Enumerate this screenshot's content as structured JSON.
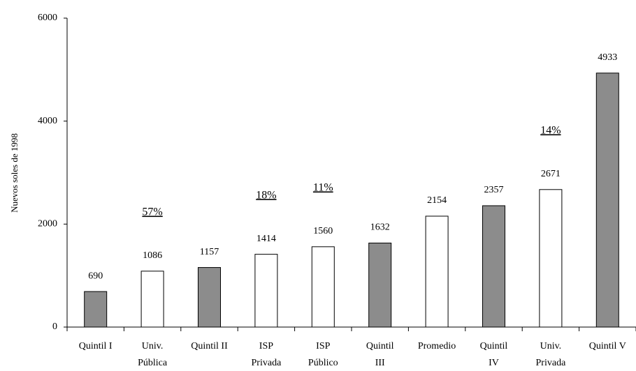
{
  "chart_data": {
    "type": "bar",
    "y_label": "Nuevos soles de 1998",
    "categories": [
      "Quintil I",
      "Univ.\nPública",
      "Quintil II",
      "ISP\nPrivada",
      "ISP\nPúblico",
      "Quintil\nIII",
      "Promedio",
      "Quintil\nIV",
      "Univ.\nPrivada",
      "Quintil V"
    ],
    "values": [
      690,
      1086,
      1157,
      1414,
      1560,
      1632,
      2154,
      2357,
      2671,
      4933
    ],
    "colors": [
      "#8c8c8c",
      "#ffffff",
      "#8c8c8c",
      "#ffffff",
      "#ffffff",
      "#8c8c8c",
      "#ffffff",
      "#8c8c8c",
      "#ffffff",
      "#8c8c8c"
    ],
    "share_labels": [
      null,
      "57%",
      null,
      "18%",
      "11%",
      null,
      null,
      null,
      "14%",
      null
    ],
    "ylim": [
      0,
      6000
    ],
    "yticks": [
      0,
      2000,
      4000,
      6000
    ],
    "grid": false
  }
}
